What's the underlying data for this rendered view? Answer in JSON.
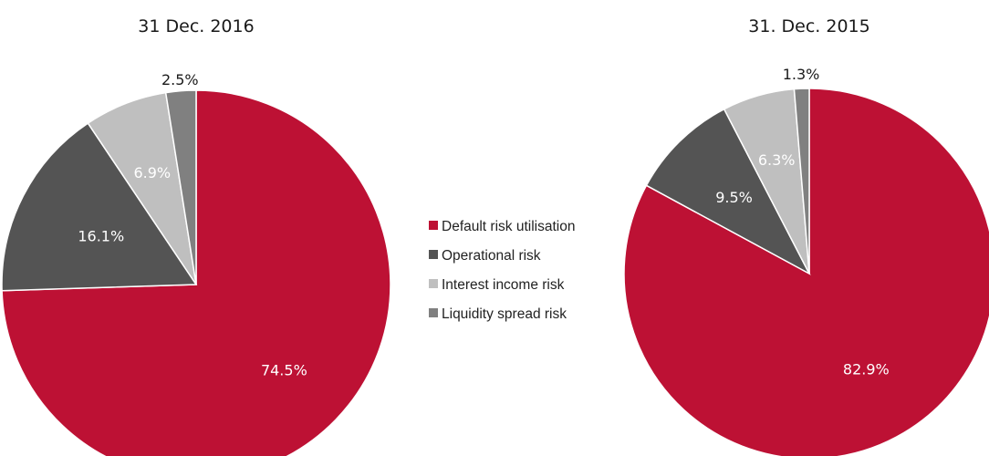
{
  "chart_data": [
    {
      "type": "pie",
      "title": "31 Dec. 2016",
      "slices": [
        {
          "label": "Default risk utilisation",
          "value": 74.5,
          "display": "74.5%",
          "color": "#bd1134",
          "label_color": "#ffffff"
        },
        {
          "label": "Operational risk",
          "value": 16.1,
          "display": "16.1%",
          "color": "#545454",
          "label_color": "#ffffff"
        },
        {
          "label": "Interest income risk",
          "value": 6.9,
          "display": "6.9%",
          "color": "#bfbfbf",
          "label_color": "#ffffff"
        },
        {
          "label": "Liquidity spread risk",
          "value": 2.5,
          "display": "2.5%",
          "color": "#808080",
          "label_color": "#1a1a1a"
        }
      ]
    },
    {
      "type": "pie",
      "title": "31. Dec. 2015",
      "slices": [
        {
          "label": "Default risk utilisation",
          "value": 82.9,
          "display": "82.9%",
          "color": "#bd1134",
          "label_color": "#ffffff"
        },
        {
          "label": "Operational risk",
          "value": 9.5,
          "display": "9.5%",
          "color": "#545454",
          "label_color": "#ffffff"
        },
        {
          "label": "Interest income risk",
          "value": 6.3,
          "display": "6.3%",
          "color": "#bfbfbf",
          "label_color": "#ffffff"
        },
        {
          "label": "Liquidity spread risk",
          "value": 1.3,
          "display": "1.3%",
          "color": "#808080",
          "label_color": "#1a1a1a"
        }
      ]
    }
  ],
  "legend": {
    "placement": "center",
    "items": [
      {
        "label": "Default risk utilisation",
        "color": "#bd1134"
      },
      {
        "label": "Operational risk",
        "color": "#545454"
      },
      {
        "label": "Interest income risk",
        "color": "#bfbfbf"
      },
      {
        "label": "Liquidity spread risk",
        "color": "#808080"
      }
    ]
  }
}
